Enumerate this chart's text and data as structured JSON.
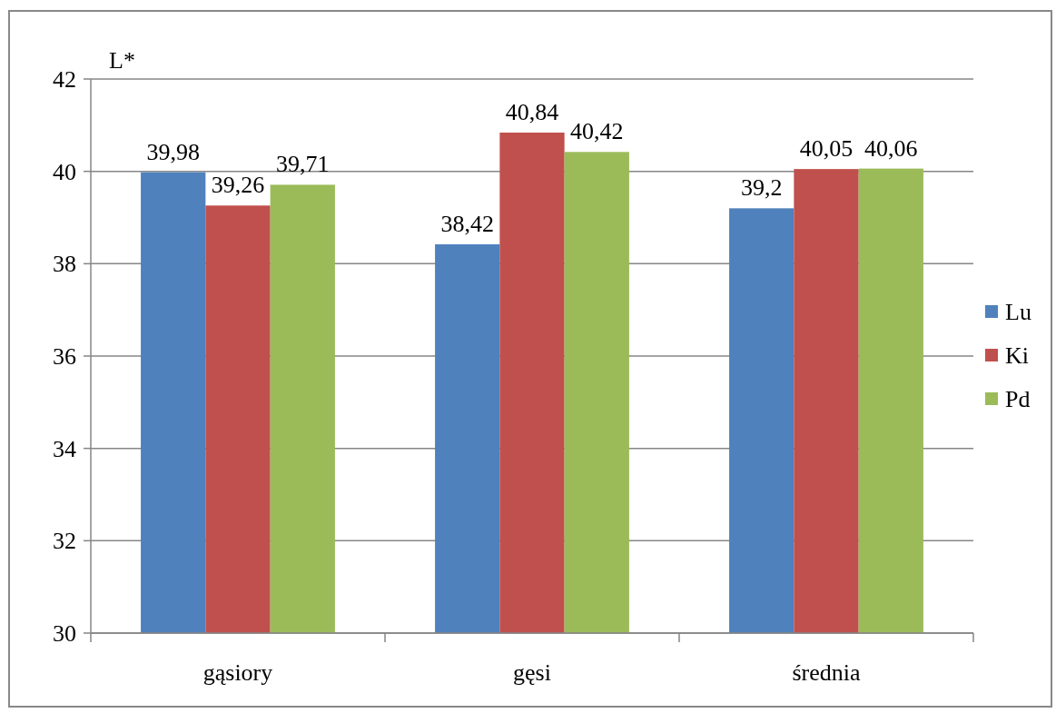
{
  "chart_data": {
    "type": "bar",
    "ylabel": "L*",
    "categories": [
      "gąsiory",
      "gęsi",
      "średnia"
    ],
    "series": [
      {
        "name": "Lu",
        "color": "#4f81bd",
        "values": [
          39.98,
          38.42,
          39.2
        ],
        "value_labels": [
          "39,98",
          "38,42",
          "39,2"
        ]
      },
      {
        "name": "Ki",
        "color": "#c0504d",
        "values": [
          39.26,
          40.84,
          40.05
        ],
        "value_labels": [
          "39,26",
          "40,84",
          "40,05"
        ]
      },
      {
        "name": "Pd",
        "color": "#9bbb59",
        "values": [
          39.71,
          40.42,
          40.06
        ],
        "value_labels": [
          "39,71",
          "40,42",
          "40,06"
        ]
      }
    ],
    "ylim": [
      30,
      42
    ],
    "yticks": [
      30,
      32,
      34,
      36,
      38,
      40,
      42
    ],
    "grid": "y",
    "legend": "right"
  }
}
